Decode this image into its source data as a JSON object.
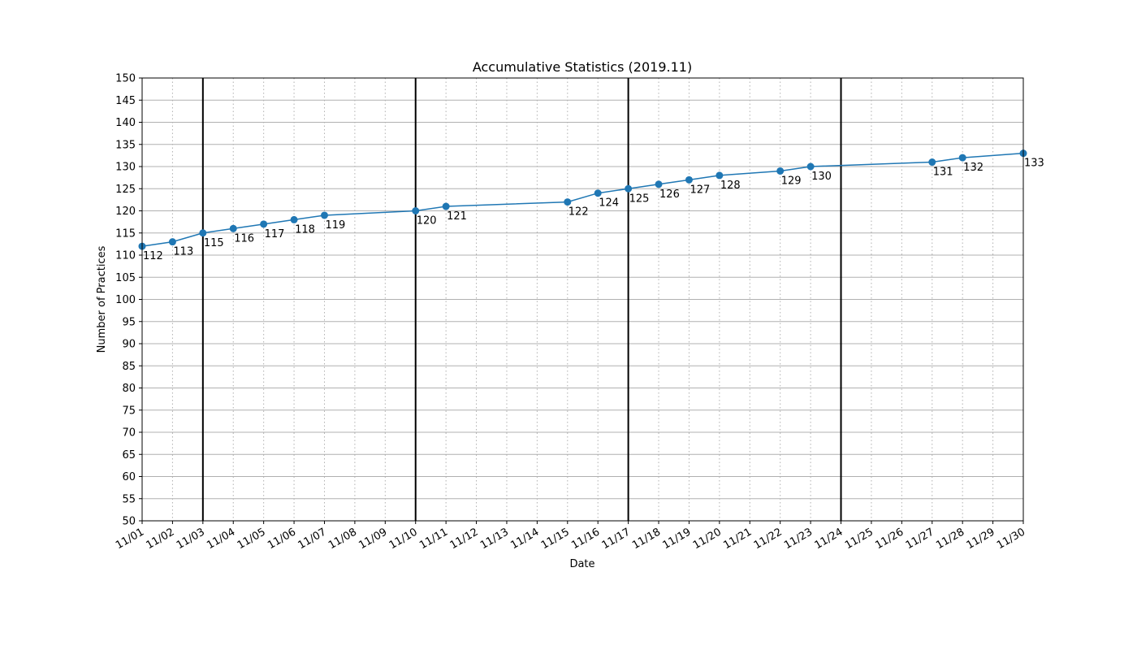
{
  "chart_data": {
    "type": "line",
    "title": "Accumulative Statistics (2019.11)",
    "xlabel": "Date",
    "ylabel": "Number of Practices",
    "x_ticks": [
      "11/01",
      "11/02",
      "11/03",
      "11/04",
      "11/05",
      "11/06",
      "11/07",
      "11/08",
      "11/09",
      "11/10",
      "11/11",
      "11/12",
      "11/13",
      "11/14",
      "11/15",
      "11/16",
      "11/17",
      "11/18",
      "11/19",
      "11/20",
      "11/21",
      "11/22",
      "11/23",
      "11/24",
      "11/25",
      "11/26",
      "11/27",
      "11/28",
      "11/29",
      "11/30"
    ],
    "xlim": [
      "11/01",
      "11/30"
    ],
    "ylim": [
      50,
      150
    ],
    "y_ticks": [
      "50",
      "55",
      "60",
      "65",
      "70",
      "75",
      "80",
      "85",
      "90",
      "95",
      "100",
      "105",
      "110",
      "115",
      "120",
      "125",
      "130",
      "135",
      "140",
      "145",
      "150"
    ],
    "week_boundaries": [
      "11/03",
      "11/10",
      "11/17",
      "11/24"
    ],
    "grid": {
      "x": "dotted",
      "y": "solid"
    },
    "series": [
      {
        "color": "#1f77b4",
        "points": [
          {
            "x": "11/01",
            "y": 112,
            "label": "112"
          },
          {
            "x": "11/02",
            "y": 113,
            "label": "113"
          },
          {
            "x": "11/03",
            "y": 115,
            "label": "115"
          },
          {
            "x": "11/04",
            "y": 116,
            "label": "116"
          },
          {
            "x": "11/05",
            "y": 117,
            "label": "117"
          },
          {
            "x": "11/06",
            "y": 118,
            "label": "118"
          },
          {
            "x": "11/07",
            "y": 119,
            "label": "119"
          },
          {
            "x": "11/10",
            "y": 120,
            "label": "120"
          },
          {
            "x": "11/11",
            "y": 121,
            "label": "121"
          },
          {
            "x": "11/15",
            "y": 122,
            "label": "122"
          },
          {
            "x": "11/16",
            "y": 124,
            "label": "124"
          },
          {
            "x": "11/17",
            "y": 125,
            "label": "125"
          },
          {
            "x": "11/18",
            "y": 126,
            "label": "126"
          },
          {
            "x": "11/19",
            "y": 127,
            "label": "127"
          },
          {
            "x": "11/20",
            "y": 128,
            "label": "128"
          },
          {
            "x": "11/22",
            "y": 129,
            "label": "129"
          },
          {
            "x": "11/23",
            "y": 130,
            "label": "130"
          },
          {
            "x": "11/27",
            "y": 131,
            "label": "131"
          },
          {
            "x": "11/28",
            "y": 132,
            "label": "132"
          },
          {
            "x": "11/30",
            "y": 133,
            "label": "133"
          }
        ]
      }
    ]
  }
}
